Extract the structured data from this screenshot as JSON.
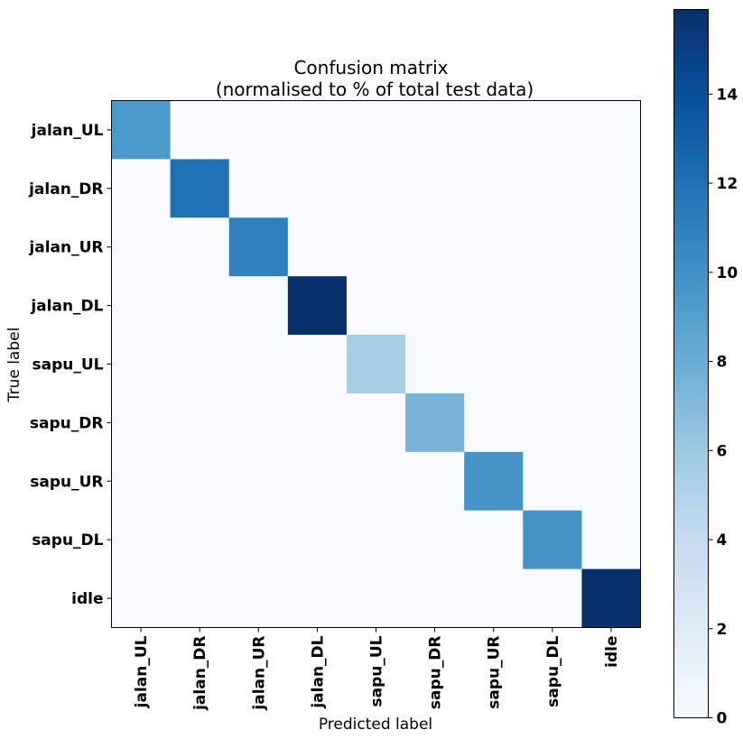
{
  "chart_data": {
    "type": "heatmap",
    "title_line1": "Confusion matrix",
    "title_line2": "(normalised to % of total test data)",
    "xlabel": "Predicted label",
    "ylabel": "True label",
    "row_labels": [
      "jalan_UL",
      "jalan_DR",
      "jalan_UR",
      "jalan_DL",
      "sapu_UL",
      "sapu_DR",
      "sapu_UR",
      "sapu_DL",
      "idle"
    ],
    "col_labels": [
      "jalan_UL",
      "jalan_DR",
      "jalan_UR",
      "jalan_DL",
      "sapu_UL",
      "sapu_DR",
      "sapu_UR",
      "sapu_DL",
      "idle"
    ],
    "values": [
      [
        9.5,
        0,
        0,
        0,
        0,
        0,
        0,
        0,
        0
      ],
      [
        0,
        12.0,
        0,
        0,
        0,
        0,
        0,
        0,
        0
      ],
      [
        0,
        0,
        11.0,
        0,
        0,
        0,
        0,
        0,
        0
      ],
      [
        0,
        0,
        0,
        15.9,
        0,
        0,
        0,
        0,
        0
      ],
      [
        0,
        0,
        0,
        0,
        5.5,
        0.1,
        0,
        0,
        0
      ],
      [
        0,
        0,
        0,
        0,
        0,
        7.5,
        0,
        0,
        0
      ],
      [
        0,
        0,
        0,
        0,
        0,
        0,
        9.7,
        0.1,
        0.1
      ],
      [
        0,
        0,
        0,
        0,
        0,
        0,
        0,
        9.8,
        0.1
      ],
      [
        0,
        0,
        0,
        0,
        0,
        0,
        0,
        0,
        15.9
      ]
    ],
    "colorbar": {
      "min": 0,
      "max": 15.9,
      "ticks": [
        0,
        2,
        4,
        6,
        8,
        10,
        12,
        14
      ],
      "colormap": "Blues"
    }
  }
}
